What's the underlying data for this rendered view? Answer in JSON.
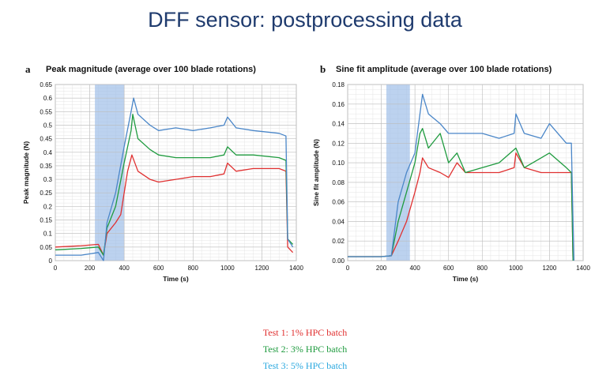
{
  "slide_title": "DFF sensor: postprocessing data",
  "legend": [
    {
      "label": "Test 1: 1% HPC batch",
      "color": "#e03030"
    },
    {
      "label": "Test 2: 3% HPC batch",
      "color": "#1f9b3f"
    },
    {
      "label": "Test 3: 5% HPC batch",
      "color": "#2aa8df"
    }
  ],
  "chart_data": [
    {
      "type": "line",
      "panel": "a",
      "title": "Peak magnitude (average over 100 blade rotations)",
      "xlabel": "Time (s)",
      "ylabel": "Peak magnitude (N)",
      "xlim": [
        0,
        1400
      ],
      "ylim": [
        0,
        0.65
      ],
      "xticks": [
        0,
        200,
        400,
        600,
        800,
        1000,
        1200,
        1400
      ],
      "yticks": [
        "0",
        "0.05",
        "0.1",
        "0.15",
        "0.2",
        "0.25",
        "0.3",
        "0.35",
        "0.4",
        "0.45",
        "0.5",
        "0.55",
        "0.6",
        "0.65"
      ],
      "grid": true,
      "shaded_region": [
        230,
        400
      ],
      "series": [
        {
          "color": "#e03030",
          "points": [
            [
              0,
              0.05
            ],
            [
              150,
              0.055
            ],
            [
              250,
              0.06
            ],
            [
              280,
              0.02
            ],
            [
              300,
              0.1
            ],
            [
              350,
              0.14
            ],
            [
              380,
              0.17
            ],
            [
              420,
              0.33
            ],
            [
              445,
              0.39
            ],
            [
              480,
              0.33
            ],
            [
              550,
              0.3
            ],
            [
              600,
              0.29
            ],
            [
              700,
              0.3
            ],
            [
              800,
              0.31
            ],
            [
              900,
              0.31
            ],
            [
              980,
              0.32
            ],
            [
              1000,
              0.36
            ],
            [
              1050,
              0.33
            ],
            [
              1150,
              0.34
            ],
            [
              1300,
              0.34
            ],
            [
              1340,
              0.33
            ],
            [
              1350,
              0.05
            ],
            [
              1380,
              0.03
            ]
          ]
        },
        {
          "color": "#1f9b3f",
          "points": [
            [
              0,
              0.04
            ],
            [
              150,
              0.045
            ],
            [
              250,
              0.05
            ],
            [
              280,
              0.02
            ],
            [
              300,
              0.12
            ],
            [
              350,
              0.2
            ],
            [
              400,
              0.36
            ],
            [
              440,
              0.48
            ],
            [
              450,
              0.54
            ],
            [
              480,
              0.45
            ],
            [
              550,
              0.41
            ],
            [
              600,
              0.39
            ],
            [
              700,
              0.38
            ],
            [
              800,
              0.38
            ],
            [
              900,
              0.38
            ],
            [
              980,
              0.39
            ],
            [
              1000,
              0.42
            ],
            [
              1050,
              0.39
            ],
            [
              1150,
              0.39
            ],
            [
              1300,
              0.38
            ],
            [
              1340,
              0.37
            ],
            [
              1350,
              0.08
            ],
            [
              1380,
              0.06
            ]
          ]
        },
        {
          "color": "#4a86c8",
          "points": [
            [
              0,
              0.02
            ],
            [
              150,
              0.02
            ],
            [
              250,
              0.03
            ],
            [
              280,
              0.0
            ],
            [
              300,
              0.14
            ],
            [
              350,
              0.25
            ],
            [
              400,
              0.42
            ],
            [
              440,
              0.55
            ],
            [
              455,
              0.6
            ],
            [
              480,
              0.54
            ],
            [
              550,
              0.5
            ],
            [
              600,
              0.48
            ],
            [
              700,
              0.49
            ],
            [
              800,
              0.48
            ],
            [
              900,
              0.49
            ],
            [
              980,
              0.5
            ],
            [
              1000,
              0.53
            ],
            [
              1050,
              0.49
            ],
            [
              1150,
              0.48
            ],
            [
              1300,
              0.47
            ],
            [
              1340,
              0.46
            ],
            [
              1350,
              0.08
            ],
            [
              1380,
              0.05
            ]
          ]
        }
      ]
    },
    {
      "type": "line",
      "panel": "b",
      "title": "Sine fit amplitude (average over 100 blade rotations)",
      "xlabel": "Time (s)",
      "ylabel": "Sine fit amplitude (N)",
      "xlim": [
        0,
        1400
      ],
      "ylim": [
        0,
        0.18
      ],
      "xticks": [
        0,
        200,
        400,
        600,
        800,
        1000,
        1200,
        1400
      ],
      "yticks": [
        "0.00",
        "0.02",
        "0.04",
        "0.06",
        "0.08",
        "0.10",
        "0.12",
        "0.14",
        "0.16",
        "0.18"
      ],
      "grid": true,
      "shaded_region": [
        230,
        370
      ],
      "series": [
        {
          "color": "#e03030",
          "points": [
            [
              0,
              0.004
            ],
            [
              200,
              0.004
            ],
            [
              260,
              0.005
            ],
            [
              300,
              0.02
            ],
            [
              350,
              0.04
            ],
            [
              400,
              0.07
            ],
            [
              430,
              0.09
            ],
            [
              445,
              0.105
            ],
            [
              480,
              0.095
            ],
            [
              550,
              0.09
            ],
            [
              600,
              0.085
            ],
            [
              650,
              0.1
            ],
            [
              700,
              0.09
            ],
            [
              800,
              0.09
            ],
            [
              900,
              0.09
            ],
            [
              990,
              0.095
            ],
            [
              1000,
              0.11
            ],
            [
              1050,
              0.095
            ],
            [
              1150,
              0.09
            ],
            [
              1300,
              0.09
            ],
            [
              1330,
              0.09
            ],
            [
              1340,
              0.0
            ]
          ]
        },
        {
          "color": "#1f9b3f",
          "points": [
            [
              0,
              0.004
            ],
            [
              200,
              0.004
            ],
            [
              260,
              0.005
            ],
            [
              300,
              0.04
            ],
            [
              350,
              0.07
            ],
            [
              400,
              0.1
            ],
            [
              430,
              0.13
            ],
            [
              445,
              0.135
            ],
            [
              480,
              0.115
            ],
            [
              550,
              0.13
            ],
            [
              600,
              0.1
            ],
            [
              650,
              0.11
            ],
            [
              700,
              0.09
            ],
            [
              800,
              0.095
            ],
            [
              900,
              0.1
            ],
            [
              1000,
              0.115
            ],
            [
              1050,
              0.095
            ],
            [
              1150,
              0.105
            ],
            [
              1200,
              0.11
            ],
            [
              1300,
              0.095
            ],
            [
              1330,
              0.09
            ],
            [
              1340,
              0.0
            ]
          ]
        },
        {
          "color": "#4a86c8",
          "points": [
            [
              0,
              0.004
            ],
            [
              200,
              0.004
            ],
            [
              260,
              0.005
            ],
            [
              300,
              0.06
            ],
            [
              350,
              0.09
            ],
            [
              400,
              0.11
            ],
            [
              430,
              0.15
            ],
            [
              445,
              0.17
            ],
            [
              480,
              0.15
            ],
            [
              550,
              0.14
            ],
            [
              600,
              0.13
            ],
            [
              700,
              0.13
            ],
            [
              800,
              0.13
            ],
            [
              900,
              0.125
            ],
            [
              990,
              0.13
            ],
            [
              1000,
              0.15
            ],
            [
              1050,
              0.13
            ],
            [
              1150,
              0.125
            ],
            [
              1200,
              0.14
            ],
            [
              1300,
              0.12
            ],
            [
              1330,
              0.12
            ],
            [
              1345,
              0.0
            ]
          ]
        }
      ]
    }
  ]
}
